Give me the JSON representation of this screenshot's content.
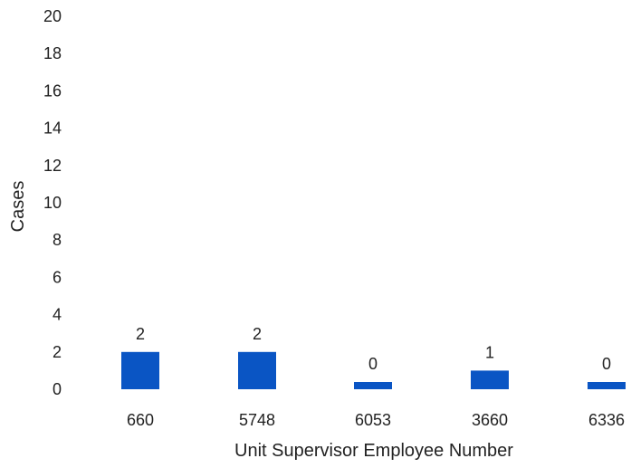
{
  "chart_data": {
    "type": "bar",
    "title": "",
    "xlabel": "Unit Supervisor Employee Number",
    "ylabel": "Cases",
    "categories": [
      "660",
      "5748",
      "6053",
      "3660",
      "6336"
    ],
    "values": [
      2,
      2,
      0,
      1,
      0
    ],
    "data_labels": [
      "2",
      "2",
      "0",
      "1",
      "0"
    ],
    "ylim": [
      0,
      20
    ],
    "yticks": [
      "0",
      "2",
      "4",
      "6",
      "8",
      "10",
      "12",
      "14",
      "16",
      "18",
      "20"
    ],
    "grid": false,
    "legend": "none",
    "colors": {
      "bar": "#0a55c4"
    }
  }
}
